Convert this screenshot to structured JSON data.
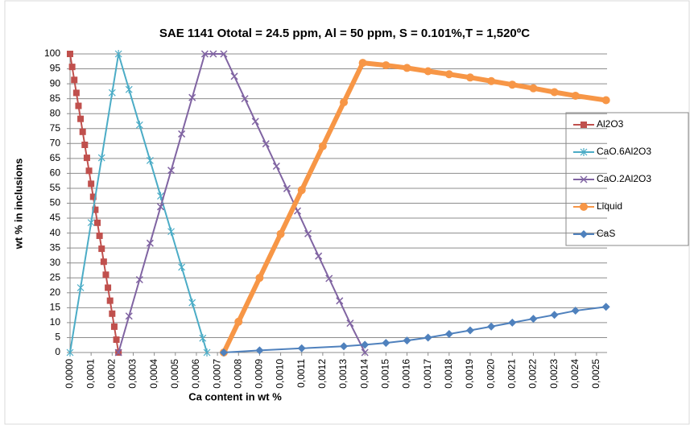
{
  "chart_data": {
    "type": "line",
    "title": "SAE 1141 Ototal = 24.5 ppm, Al = 50 ppm, S = 0.101%,T = 1,520ºC",
    "x_label": "Ca content in wt %",
    "y_label": "wt % in inclusions",
    "xlim": [
      0,
      0.00255
    ],
    "ylim": [
      0,
      100
    ],
    "xticks": [
      {
        "value": 0,
        "label": "0,0000"
      },
      {
        "value": 0.0001,
        "label": "0,0001"
      },
      {
        "value": 0.0002,
        "label": "0,0002"
      },
      {
        "value": 0.0003,
        "label": "0,0003"
      },
      {
        "value": 0.0004,
        "label": "0,0004"
      },
      {
        "value": 0.0005,
        "label": "0,0005"
      },
      {
        "value": 0.0006,
        "label": "0,0006"
      },
      {
        "value": 0.0007,
        "label": "0,0007"
      },
      {
        "value": 0.0008,
        "label": "0,0008"
      },
      {
        "value": 0.0009,
        "label": "0,0009"
      },
      {
        "value": 0.001,
        "label": "0,0010"
      },
      {
        "value": 0.0011,
        "label": "0,0011"
      },
      {
        "value": 0.0012,
        "label": "0,0012"
      },
      {
        "value": 0.0013,
        "label": "0,0013"
      },
      {
        "value": 0.0014,
        "label": "0,0014"
      },
      {
        "value": 0.0015,
        "label": "0,0015"
      },
      {
        "value": 0.0016,
        "label": "0,0016"
      },
      {
        "value": 0.0017,
        "label": "0,0017"
      },
      {
        "value": 0.0018,
        "label": "0,0018"
      },
      {
        "value": 0.0019,
        "label": "0,0019"
      },
      {
        "value": 0.002,
        "label": "0,0020"
      },
      {
        "value": 0.0021,
        "label": "0,0021"
      },
      {
        "value": 0.0022,
        "label": "0,0022"
      },
      {
        "value": 0.0023,
        "label": "0,0023"
      },
      {
        "value": 0.0024,
        "label": "0,0024"
      },
      {
        "value": 0.0025,
        "label": "0,0025"
      }
    ],
    "yticks": [
      0,
      5,
      10,
      15,
      20,
      25,
      30,
      35,
      40,
      45,
      50,
      55,
      60,
      65,
      70,
      75,
      80,
      85,
      90,
      95,
      100
    ],
    "grid": true,
    "legend": "right",
    "series": [
      {
        "name": "Al2O3",
        "color": "#c0504d",
        "marker": "square",
        "x": [
          0,
          1e-05,
          2e-05,
          3e-05,
          4e-05,
          5e-05,
          6e-05,
          7e-05,
          8e-05,
          9e-05,
          0.0001,
          0.00011,
          0.00012,
          0.00013,
          0.00014,
          0.00015,
          0.00016,
          0.00017,
          0.00018,
          0.00019,
          0.0002,
          0.00021,
          0.00022,
          0.00023
        ],
        "values": [
          100,
          95.65,
          91.3,
          86.95,
          82.6,
          78.25,
          73.9,
          69.55,
          65.2,
          60.85,
          56.5,
          52.15,
          47.8,
          43.45,
          39.1,
          34.75,
          30.4,
          26.05,
          21.7,
          17.35,
          13,
          8.65,
          4.3,
          0
        ]
      },
      {
        "name": "CaO.6Al2O3",
        "color": "#4bacc6",
        "marker": "star",
        "x": [
          0,
          5e-05,
          0.0001,
          0.00015,
          0.0002,
          0.00023,
          0.00028,
          0.00033,
          0.00038,
          0.00043,
          0.00048,
          0.00053,
          0.00058,
          0.00063,
          0.00065
        ],
        "values": [
          0,
          21.7,
          43.5,
          65.2,
          87,
          100,
          88.1,
          76.2,
          64.3,
          52.4,
          40.5,
          28.6,
          16.7,
          4.8,
          0
        ]
      },
      {
        "name": "CaO.2Al2O3",
        "color": "#8064a2",
        "marker": "x",
        "x": [
          0.00023,
          0.00028,
          0.00033,
          0.00038,
          0.00043,
          0.00048,
          0.00053,
          0.00058,
          0.00064,
          0.00068,
          0.00073,
          0.00078,
          0.00083,
          0.00088,
          0.00093,
          0.00098,
          0.00103,
          0.00108,
          0.00113,
          0.00118,
          0.00123,
          0.00128,
          0.00133,
          0.0014
        ],
        "values": [
          0,
          12.2,
          24.4,
          36.6,
          48.8,
          61,
          73.2,
          85.4,
          100,
          100,
          100,
          92.5,
          85,
          77.4,
          69.9,
          62.4,
          54.9,
          47.4,
          39.8,
          32.3,
          24.8,
          17.3,
          9.8,
          0
        ]
      },
      {
        "name": "Liquid",
        "color": "#f79646",
        "marker": "circle",
        "x": [
          0.00073,
          0.0008,
          0.0009,
          0.001,
          0.0011,
          0.0012,
          0.0013,
          0.00139,
          0.0015,
          0.0016,
          0.0017,
          0.0018,
          0.0019,
          0.002,
          0.0021,
          0.0022,
          0.0023,
          0.0024,
          0.002545
        ],
        "values": [
          0,
          10.3,
          25,
          39.7,
          54.4,
          69.1,
          83.8,
          97,
          96.2,
          95.3,
          94.2,
          93.2,
          92.1,
          90.9,
          89.7,
          88.5,
          87.2,
          86,
          84.5
        ]
      },
      {
        "name": "CaS",
        "color": "#4f81bd",
        "marker": "diamond",
        "x": [
          0.00073,
          0.0009,
          0.0011,
          0.0013,
          0.0014,
          0.0015,
          0.0016,
          0.0017,
          0.0018,
          0.0019,
          0.002,
          0.0021,
          0.0022,
          0.0023,
          0.0024,
          0.002545
        ],
        "values": [
          0,
          0.7,
          1.4,
          2.1,
          2.6,
          3.2,
          4,
          5,
          6.2,
          7.4,
          8.7,
          10,
          11.3,
          12.6,
          14,
          15.3
        ]
      }
    ]
  }
}
